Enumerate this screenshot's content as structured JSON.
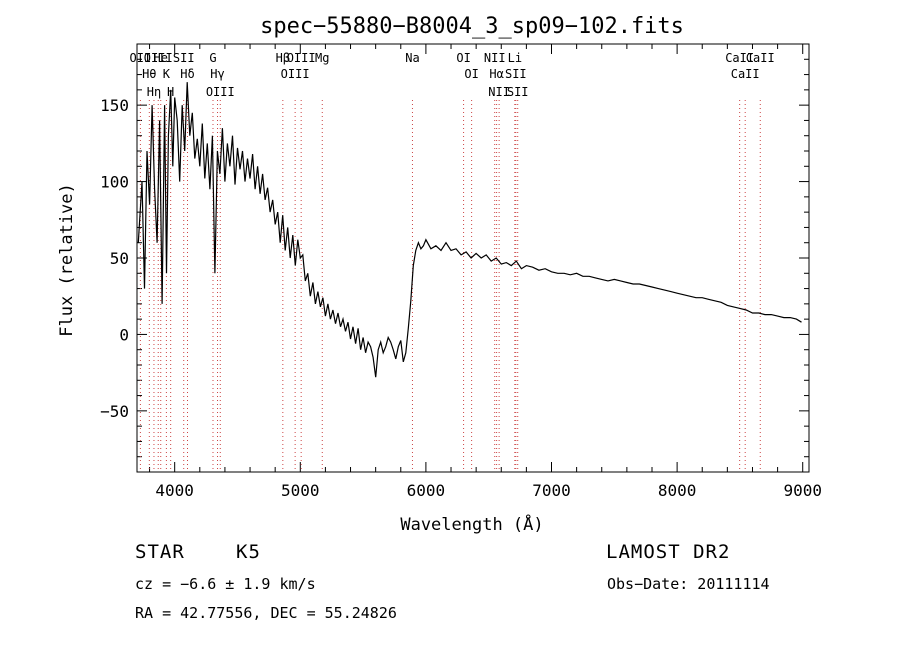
{
  "chart_data": {
    "type": "line",
    "title": "spec−55880−B8004_3_sp09−102.fits",
    "xlabel": "Wavelength (Å)",
    "ylabel": "Flux (relative)",
    "xlim": [
      3700,
      9050
    ],
    "ylim": [
      -90,
      190
    ],
    "xticks": [
      4000,
      5000,
      6000,
      7000,
      8000,
      9000
    ],
    "yticks": [
      -50,
      0,
      50,
      100,
      150
    ],
    "grid": false,
    "series": [
      {
        "x": [
          3710,
          3740,
          3760,
          3780,
          3800,
          3820,
          3840,
          3860,
          3880,
          3900,
          3920,
          3935,
          3950,
          3968,
          3985,
          4000,
          4020,
          4040,
          4060,
          4080,
          4100,
          4120,
          4140,
          4160,
          4180,
          4200,
          4220,
          4240,
          4260,
          4280,
          4300,
          4320,
          4340,
          4360,
          4380,
          4400,
          4420,
          4440,
          4460,
          4480,
          4500,
          4520,
          4540,
          4560,
          4580,
          4600,
          4620,
          4640,
          4660,
          4680,
          4700,
          4720,
          4740,
          4760,
          4780,
          4800,
          4820,
          4840,
          4860,
          4880,
          4900,
          4920,
          4940,
          4960,
          4980,
          5000,
          5020,
          5040,
          5060,
          5080,
          5100,
          5120,
          5140,
          5160,
          5180,
          5200,
          5220,
          5240,
          5260,
          5280,
          5300,
          5320,
          5340,
          5360,
          5380,
          5400,
          5420,
          5440,
          5460,
          5480,
          5500,
          5520,
          5540,
          5560,
          5580,
          5600,
          5620,
          5640,
          5660,
          5680,
          5700,
          5720,
          5740,
          5760,
          5780,
          5800,
          5820,
          5840,
          5860,
          5880,
          5900,
          5920,
          5940,
          5960,
          5980,
          6000,
          6040,
          6080,
          6120,
          6160,
          6200,
          6240,
          6280,
          6320,
          6360,
          6400,
          6440,
          6480,
          6520,
          6560,
          6600,
          6640,
          6680,
          6720,
          6760,
          6800,
          6850,
          6900,
          6950,
          7000,
          7050,
          7100,
          7150,
          7200,
          7250,
          7300,
          7350,
          7400,
          7450,
          7500,
          7550,
          7600,
          7650,
          7700,
          7750,
          7800,
          7850,
          7900,
          7950,
          8000,
          8050,
          8100,
          8150,
          8200,
          8250,
          8300,
          8350,
          8400,
          8450,
          8500,
          8550,
          8600,
          8650,
          8700,
          8750,
          8800,
          8850,
          8900,
          8950,
          8990
        ],
        "y": [
          60,
          100,
          30,
          120,
          85,
          150,
          95,
          60,
          140,
          20,
          150,
          40,
          130,
          160,
          110,
          155,
          140,
          100,
          150,
          120,
          165,
          130,
          145,
          115,
          128,
          110,
          138,
          102,
          125,
          95,
          130,
          40,
          120,
          105,
          135,
          100,
          125,
          110,
          130,
          98,
          122,
          108,
          120,
          100,
          115,
          102,
          118,
          95,
          110,
          92,
          105,
          88,
          96,
          80,
          88,
          72,
          80,
          60,
          78,
          55,
          70,
          50,
          65,
          45,
          62,
          50,
          52,
          35,
          40,
          25,
          34,
          20,
          28,
          18,
          24,
          12,
          20,
          10,
          16,
          7,
          14,
          5,
          10,
          2,
          8,
          -3,
          5,
          -6,
          4,
          -10,
          -2,
          -12,
          -5,
          -8,
          -15,
          -28,
          -10,
          -5,
          -12,
          -8,
          -2,
          -5,
          -10,
          -16,
          -8,
          -4,
          -18,
          -12,
          4,
          22,
          45,
          55,
          60,
          56,
          58,
          62,
          56,
          58,
          55,
          60,
          55,
          56,
          52,
          54,
          50,
          53,
          50,
          52,
          48,
          50,
          46,
          47,
          45,
          48,
          43,
          45,
          44,
          42,
          43,
          41,
          40,
          40,
          39,
          40,
          38,
          38,
          37,
          36,
          35,
          36,
          35,
          34,
          33,
          33,
          32,
          31,
          30,
          29,
          28,
          27,
          26,
          25,
          24,
          24,
          23,
          22,
          21,
          19,
          18,
          17,
          16,
          14,
          14,
          13,
          13,
          12,
          11,
          11,
          10,
          8
        ]
      }
    ],
    "lines": [
      {
        "label": "Hθ",
        "x": 3798
      },
      {
        "label": "OII",
        "x": 3727
      },
      {
        "label": "OIII",
        "x": 3869
      },
      {
        "label": "He",
        "x": 3889
      },
      {
        "label": "Hη",
        "x": 3835
      },
      {
        "label": "K",
        "x": 3934
      },
      {
        "label": "H",
        "x": 3968
      },
      {
        "label": "SII",
        "x": 4072
      },
      {
        "label": "Hδ",
        "x": 4102
      },
      {
        "label": "OIII",
        "x": 4363
      },
      {
        "label": "Hγ",
        "x": 4341
      },
      {
        "label": "G",
        "x": 4305
      },
      {
        "label": "Hβ",
        "x": 4861
      },
      {
        "label": "OIII",
        "x": 4959
      },
      {
        "label": "OIII",
        "x": 5007
      },
      {
        "label": "Mg",
        "x": 5175
      },
      {
        "label": "Na",
        "x": 5893
      },
      {
        "label": "OI",
        "x": 6300
      },
      {
        "label": "OI",
        "x": 6364
      },
      {
        "label": "Hα",
        "x": 6563
      },
      {
        "label": "NII",
        "x": 6548
      },
      {
        "label": "NII",
        "x": 6583
      },
      {
        "label": "SII",
        "x": 6716
      },
      {
        "label": "SII",
        "x": 6731
      },
      {
        "label": "Li",
        "x": 6708
      },
      {
        "label": "CaII",
        "x": 8498
      },
      {
        "label": "CaII",
        "x": 8542
      },
      {
        "label": "CaII",
        "x": 8662
      }
    ]
  },
  "info": {
    "object_class": "STAR",
    "subclass": "K5",
    "survey": "LAMOST DR2",
    "cz": "cz = −6.6 ± 1.9 km/s",
    "obs_date": "Obs−Date: 20111114",
    "coords": "RA =  42.77556, DEC =  55.24826"
  }
}
